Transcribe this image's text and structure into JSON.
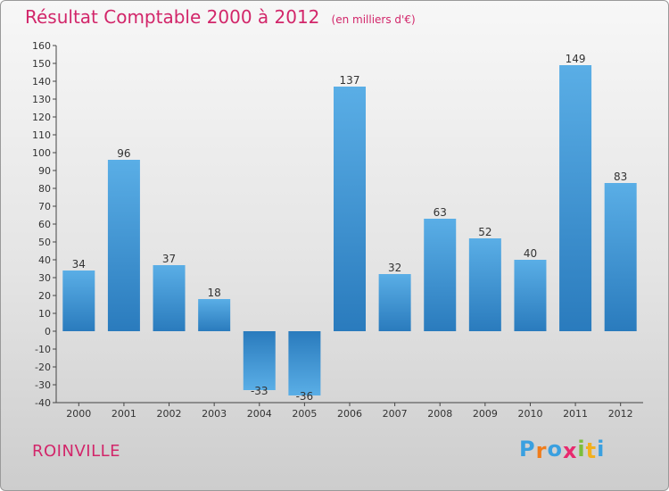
{
  "chart_data": {
    "type": "bar",
    "title": "Résultat Comptable 2000 à 2012",
    "subtitle": "(en milliers d'€)",
    "categories": [
      "2000",
      "2001",
      "2002",
      "2003",
      "2004",
      "2005",
      "2006",
      "2007",
      "2008",
      "2009",
      "2010",
      "2011",
      "2012"
    ],
    "values": [
      34,
      96,
      37,
      18,
      -33,
      -36,
      137,
      32,
      63,
      52,
      40,
      149,
      83
    ],
    "ylim": [
      -40,
      160
    ],
    "ytick_step": 10,
    "grid": false,
    "xlabel": "",
    "ylabel": "",
    "colors": {
      "bar_top": "#5aaee6",
      "bar_bottom": "#2a7bbd",
      "axis": "#444444",
      "label": "#333333"
    }
  },
  "town": "ROINVILLE",
  "logo": {
    "text": "Proxiti",
    "letters": [
      "P",
      "r",
      "o",
      "x",
      "i",
      "t",
      "i"
    ],
    "colors": [
      "#3aa0e0",
      "#f07c1a",
      "#3aa0e0",
      "#e82a6e",
      "#7cbe3c",
      "#f2b01e",
      "#3aa0e0"
    ]
  }
}
